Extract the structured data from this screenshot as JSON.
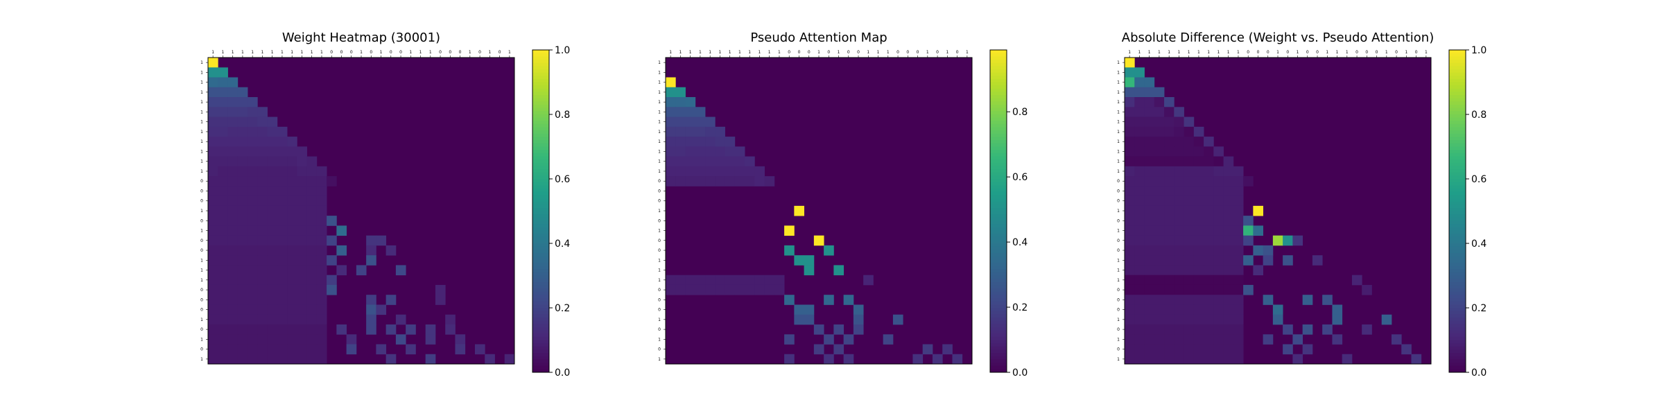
{
  "figure": {
    "colormap": "viridis"
  },
  "chart_data": [
    {
      "type": "heatmap",
      "title": "Weight Heatmap (30001)",
      "tick_labels": [
        "1",
        "1",
        "1",
        "1",
        "1",
        "1",
        "1",
        "1",
        "1",
        "1",
        "1",
        "1",
        "0",
        "0",
        "0",
        "1",
        "0",
        "1",
        "0",
        "0",
        "1",
        "1",
        "1",
        "0",
        "0",
        "0",
        "1",
        "0",
        "1",
        "0",
        "1"
      ],
      "value_range": [
        0,
        1
      ],
      "colorbar_ticks": [
        "0.0",
        "0.2",
        "0.4",
        "0.6",
        "0.8",
        "1.0"
      ],
      "colorbar_values": [
        0,
        0.2,
        0.4,
        0.6,
        0.8,
        1.0
      ],
      "row_prefix_values": [
        [
          1.0
        ],
        [
          0.5,
          0.5
        ],
        [
          0.34,
          0.33,
          0.33
        ],
        [
          0.25,
          0.25,
          0.25,
          0.25
        ],
        [
          0.2,
          0.2,
          0.2,
          0.2,
          0.2
        ],
        [
          0.17,
          0.17,
          0.17,
          0.17,
          0.16,
          0.16
        ],
        [
          0.14,
          0.14,
          0.14,
          0.14,
          0.14,
          0.15,
          0.15
        ],
        [
          0.13,
          0.13,
          0.12,
          0.12,
          0.12,
          0.12,
          0.13,
          0.13
        ],
        [
          0.11,
          0.11,
          0.11,
          0.11,
          0.11,
          0.11,
          0.11,
          0.11,
          0.12
        ],
        [
          0.1,
          0.1,
          0.1,
          0.1,
          0.1,
          0.1,
          0.1,
          0.1,
          0.1,
          0.1
        ],
        [
          0.09,
          0.09,
          0.09,
          0.09,
          0.09,
          0.09,
          0.09,
          0.09,
          0.09,
          0.1,
          0.09
        ],
        [
          0.09,
          0.08,
          0.08,
          0.08,
          0.08,
          0.08,
          0.08,
          0.08,
          0.08,
          0.09,
          0.09,
          0.09
        ],
        [
          0.08,
          0.08,
          0.08,
          0.08,
          0.08,
          0.08,
          0.08,
          0.08,
          0.08,
          0.08,
          0.08,
          0.08,
          0.04
        ]
      ],
      "row_band_values": [
        0.08,
        0.08,
        0.08,
        0.08,
        0.08,
        0.08,
        0.07,
        0.07,
        0.07,
        0.07,
        0.07,
        0.07,
        0.07,
        0.07,
        0.06,
        0.06,
        0.06,
        0.06
      ],
      "highlight_cells": [
        {
          "row": 16,
          "col": 12,
          "value": 0.25
        },
        {
          "row": 17,
          "col": 13,
          "value": 0.35
        },
        {
          "row": 18,
          "col": 12,
          "value": 0.2
        },
        {
          "row": 18,
          "col": 16,
          "value": 0.15
        },
        {
          "row": 18,
          "col": 17,
          "value": 0.15
        },
        {
          "row": 19,
          "col": 13,
          "value": 0.3
        },
        {
          "row": 19,
          "col": 16,
          "value": 0.12
        },
        {
          "row": 19,
          "col": 18,
          "value": 0.12
        },
        {
          "row": 20,
          "col": 16,
          "value": 0.25
        },
        {
          "row": 20,
          "col": 12,
          "value": 0.2
        },
        {
          "row": 21,
          "col": 13,
          "value": 0.12
        },
        {
          "row": 21,
          "col": 15,
          "value": 0.2
        },
        {
          "row": 21,
          "col": 19,
          "value": 0.22
        },
        {
          "row": 22,
          "col": 12,
          "value": 0.18
        },
        {
          "row": 23,
          "col": 12,
          "value": 0.25
        },
        {
          "row": 23,
          "col": 23,
          "value": 0.1
        },
        {
          "row": 24,
          "col": 16,
          "value": 0.18
        },
        {
          "row": 24,
          "col": 18,
          "value": 0.2
        },
        {
          "row": 24,
          "col": 23,
          "value": 0.1
        },
        {
          "row": 25,
          "col": 16,
          "value": 0.25
        },
        {
          "row": 25,
          "col": 17,
          "value": 0.15
        },
        {
          "row": 26,
          "col": 16,
          "value": 0.2
        },
        {
          "row": 26,
          "col": 19,
          "value": 0.12
        },
        {
          "row": 26,
          "col": 24,
          "value": 0.1
        },
        {
          "row": 27,
          "col": 13,
          "value": 0.15
        },
        {
          "row": 27,
          "col": 16,
          "value": 0.2
        },
        {
          "row": 27,
          "col": 18,
          "value": 0.18
        },
        {
          "row": 27,
          "col": 20,
          "value": 0.18
        },
        {
          "row": 27,
          "col": 22,
          "value": 0.15
        },
        {
          "row": 27,
          "col": 24,
          "value": 0.12
        },
        {
          "row": 28,
          "col": 14,
          "value": 0.12
        },
        {
          "row": 28,
          "col": 19,
          "value": 0.22
        },
        {
          "row": 28,
          "col": 22,
          "value": 0.15
        },
        {
          "row": 28,
          "col": 25,
          "value": 0.12
        },
        {
          "row": 29,
          "col": 14,
          "value": 0.2
        },
        {
          "row": 29,
          "col": 17,
          "value": 0.15
        },
        {
          "row": 29,
          "col": 20,
          "value": 0.15
        },
        {
          "row": 29,
          "col": 25,
          "value": 0.15
        },
        {
          "row": 29,
          "col": 27,
          "value": 0.12
        },
        {
          "row": 30,
          "col": 18,
          "value": 0.15
        },
        {
          "row": 30,
          "col": 22,
          "value": 0.18
        },
        {
          "row": 30,
          "col": 28,
          "value": 0.12
        },
        {
          "row": 30,
          "col": 30,
          "value": 0.1
        }
      ]
    },
    {
      "type": "heatmap",
      "title": "Pseudo Attention Map",
      "tick_labels": [
        "1",
        "1",
        "1",
        "1",
        "1",
        "1",
        "1",
        "1",
        "1",
        "1",
        "1",
        "1",
        "0",
        "0",
        "0",
        "1",
        "0",
        "1",
        "0",
        "0",
        "1",
        "1",
        "1",
        "0",
        "0",
        "0",
        "1",
        "0",
        "1",
        "0",
        "1"
      ],
      "value_range": [
        0,
        1
      ],
      "colorbar_ticks": [
        "0.0",
        "0.2",
        "0.4",
        "0.6",
        "0.8"
      ],
      "colorbar_values": [
        0,
        0.2,
        0.4,
        0.6,
        0.8
      ],
      "row_prefix_values": [
        [
          0
        ],
        [
          0
        ],
        [
          1.0
        ],
        [
          0.5,
          0.5
        ],
        [
          0.33,
          0.33,
          0.34
        ],
        [
          0.25,
          0.25,
          0.25,
          0.25
        ],
        [
          0.2,
          0.2,
          0.2,
          0.2,
          0.2
        ],
        [
          0.17,
          0.17,
          0.17,
          0.17,
          0.16,
          0.16
        ],
        [
          0.14,
          0.14,
          0.14,
          0.14,
          0.14,
          0.15,
          0.15
        ],
        [
          0.13,
          0.13,
          0.12,
          0.12,
          0.12,
          0.12,
          0.13,
          0.13
        ],
        [
          0.11,
          0.11,
          0.11,
          0.11,
          0.11,
          0.11,
          0.11,
          0.11,
          0.12
        ],
        [
          0.1,
          0.1,
          0.1,
          0.1,
          0.1,
          0.1,
          0.1,
          0.1,
          0.1,
          0.1
        ],
        [
          0.09,
          0.09,
          0.09,
          0.09,
          0.09,
          0.09,
          0.09,
          0.09,
          0.09,
          0.1,
          0.09
        ],
        [
          0
        ],
        [
          0
        ],
        [
          0
        ],
        [
          0
        ],
        [
          0
        ],
        [
          0
        ],
        [
          0
        ],
        [
          0
        ],
        [
          0
        ],
        [
          0.08,
          0.08,
          0.08,
          0.08,
          0.08,
          0.08,
          0.08,
          0.08,
          0.08,
          0.08,
          0.08,
          0.08
        ],
        [
          0.08,
          0.08,
          0.08,
          0.08,
          0.08,
          0.08,
          0.08,
          0.08,
          0.08,
          0.08,
          0.08,
          0.08
        ],
        [
          0
        ],
        [
          0
        ],
        [
          0
        ],
        [
          0
        ],
        [
          0
        ],
        [
          0
        ],
        [
          0
        ]
      ],
      "row_band_values": [],
      "highlight_cells": [
        {
          "row": 15,
          "col": 13,
          "value": 1.0
        },
        {
          "row": 17,
          "col": 12,
          "value": 1.0
        },
        {
          "row": 18,
          "col": 15,
          "value": 1.0
        },
        {
          "row": 19,
          "col": 12,
          "value": 0.5
        },
        {
          "row": 19,
          "col": 16,
          "value": 0.5
        },
        {
          "row": 20,
          "col": 13,
          "value": 0.5
        },
        {
          "row": 20,
          "col": 14,
          "value": 0.5
        },
        {
          "row": 21,
          "col": 14,
          "value": 0.5
        },
        {
          "row": 21,
          "col": 17,
          "value": 0.5
        },
        {
          "row": 22,
          "col": 20,
          "value": 0.1
        },
        {
          "row": 24,
          "col": 12,
          "value": 0.33
        },
        {
          "row": 24,
          "col": 16,
          "value": 0.33
        },
        {
          "row": 24,
          "col": 18,
          "value": 0.33
        },
        {
          "row": 25,
          "col": 13,
          "value": 0.3
        },
        {
          "row": 25,
          "col": 14,
          "value": 0.3
        },
        {
          "row": 25,
          "col": 19,
          "value": 0.3
        },
        {
          "row": 26,
          "col": 13,
          "value": 0.25
        },
        {
          "row": 26,
          "col": 14,
          "value": 0.25
        },
        {
          "row": 26,
          "col": 19,
          "value": 0.25
        },
        {
          "row": 26,
          "col": 23,
          "value": 0.25
        },
        {
          "row": 27,
          "col": 15,
          "value": 0.2
        },
        {
          "row": 27,
          "col": 17,
          "value": 0.2
        },
        {
          "row": 27,
          "col": 19,
          "value": 0.2
        },
        {
          "row": 28,
          "col": 12,
          "value": 0.2
        },
        {
          "row": 28,
          "col": 16,
          "value": 0.2
        },
        {
          "row": 28,
          "col": 18,
          "value": 0.2
        },
        {
          "row": 28,
          "col": 22,
          "value": 0.2
        },
        {
          "row": 29,
          "col": 15,
          "value": 0.17
        },
        {
          "row": 29,
          "col": 17,
          "value": 0.17
        },
        {
          "row": 29,
          "col": 26,
          "value": 0.17
        },
        {
          "row": 30,
          "col": 12,
          "value": 0.14
        },
        {
          "row": 30,
          "col": 16,
          "value": 0.14
        },
        {
          "row": 30,
          "col": 18,
          "value": 0.14
        },
        {
          "row": 30,
          "col": 25,
          "value": 0.14
        },
        {
          "row": 30,
          "col": 27,
          "value": 0.14
        },
        {
          "row": 30,
          "col": 29,
          "value": 0.14
        },
        {
          "row": 29,
          "col": 28,
          "value": 0.14
        }
      ]
    },
    {
      "type": "heatmap",
      "title": "Absolute Difference (Weight vs. Pseudo Attention)",
      "tick_labels": [
        "1",
        "1",
        "1",
        "1",
        "1",
        "1",
        "1",
        "1",
        "1",
        "1",
        "1",
        "1",
        "0",
        "0",
        "0",
        "1",
        "0",
        "1",
        "0",
        "0",
        "1",
        "1",
        "1",
        "0",
        "0",
        "0",
        "1",
        "0",
        "1",
        "0",
        "1"
      ],
      "value_range": [
        0,
        1
      ],
      "colorbar_ticks": [
        "0.0",
        "0.2",
        "0.4",
        "0.6",
        "0.8",
        "1.0"
      ],
      "colorbar_values": [
        0,
        0.2,
        0.4,
        0.6,
        0.8,
        1.0
      ],
      "row_prefix_values": [
        [
          1.0
        ],
        [
          0.5,
          0.5
        ],
        [
          0.66,
          0.33,
          0.33
        ],
        [
          0.25,
          0.25,
          0.25,
          0.25
        ],
        [
          0.13,
          0.08,
          0.08,
          0.05,
          0.2
        ],
        [
          0.08,
          0.08,
          0.08,
          0.08,
          0.04,
          0.16
        ],
        [
          0.06,
          0.06,
          0.06,
          0.06,
          0.06,
          0.05,
          0.15
        ],
        [
          0.05,
          0.05,
          0.05,
          0.05,
          0.05,
          0.04,
          0.02,
          0.13
        ],
        [
          0.03,
          0.03,
          0.03,
          0.03,
          0.03,
          0.03,
          0.03,
          0.02,
          0.12
        ],
        [
          0.03,
          0.03,
          0.03,
          0.03,
          0.03,
          0.03,
          0.03,
          0.03,
          0.02,
          0.1
        ],
        [
          0.02,
          0.02,
          0.02,
          0.02,
          0.02,
          0.02,
          0.02,
          0.02,
          0.02,
          0.01,
          0.09
        ],
        [
          0.09,
          0.08,
          0.08,
          0.08,
          0.08,
          0.08,
          0.08,
          0.08,
          0.08,
          0.09,
          0.09,
          0.09
        ],
        [
          0.08,
          0.08,
          0.08,
          0.08,
          0.08,
          0.08,
          0.08,
          0.08,
          0.08,
          0.08,
          0.08,
          0.08,
          0.04
        ]
      ],
      "row_band_values": [
        0.08,
        0.08,
        0.08,
        0.08,
        0.08,
        0.08,
        0.07,
        0.07,
        0.07,
        0.01,
        0.01,
        0.07,
        0.07,
        0.07,
        0.06,
        0.06,
        0.06,
        0.06
      ],
      "highlight_cells": [
        {
          "row": 15,
          "col": 13,
          "value": 1.0
        },
        {
          "row": 16,
          "col": 12,
          "value": 0.25
        },
        {
          "row": 17,
          "col": 12,
          "value": 0.65
        },
        {
          "row": 17,
          "col": 13,
          "value": 0.35
        },
        {
          "row": 18,
          "col": 15,
          "value": 0.85
        },
        {
          "row": 18,
          "col": 16,
          "value": 0.5
        },
        {
          "row": 18,
          "col": 17,
          "value": 0.15
        },
        {
          "row": 18,
          "col": 12,
          "value": 0.2
        },
        {
          "row": 19,
          "col": 13,
          "value": 0.3
        },
        {
          "row": 19,
          "col": 14,
          "value": 0.25
        },
        {
          "row": 20,
          "col": 12,
          "value": 0.3
        },
        {
          "row": 20,
          "col": 16,
          "value": 0.25
        },
        {
          "row": 20,
          "col": 14,
          "value": 0.2
        },
        {
          "row": 20,
          "col": 19,
          "value": 0.12
        },
        {
          "row": 21,
          "col": 13,
          "value": 0.12
        },
        {
          "row": 22,
          "col": 23,
          "value": 0.1
        },
        {
          "row": 23,
          "col": 12,
          "value": 0.25
        },
        {
          "row": 23,
          "col": 24,
          "value": 0.08
        },
        {
          "row": 24,
          "col": 14,
          "value": 0.3
        },
        {
          "row": 24,
          "col": 18,
          "value": 0.3
        },
        {
          "row": 24,
          "col": 20,
          "value": 0.25
        },
        {
          "row": 25,
          "col": 15,
          "value": 0.35
        },
        {
          "row": 25,
          "col": 21,
          "value": 0.3
        },
        {
          "row": 26,
          "col": 15,
          "value": 0.3
        },
        {
          "row": 26,
          "col": 21,
          "value": 0.3
        },
        {
          "row": 26,
          "col": 26,
          "value": 0.3
        },
        {
          "row": 27,
          "col": 16,
          "value": 0.2
        },
        {
          "row": 27,
          "col": 18,
          "value": 0.25
        },
        {
          "row": 27,
          "col": 20,
          "value": 0.2
        },
        {
          "row": 27,
          "col": 24,
          "value": 0.12
        },
        {
          "row": 28,
          "col": 14,
          "value": 0.18
        },
        {
          "row": 28,
          "col": 17,
          "value": 0.22
        },
        {
          "row": 28,
          "col": 21,
          "value": 0.15
        },
        {
          "row": 28,
          "col": 27,
          "value": 0.15
        },
        {
          "row": 29,
          "col": 16,
          "value": 0.2
        },
        {
          "row": 29,
          "col": 18,
          "value": 0.15
        },
        {
          "row": 29,
          "col": 28,
          "value": 0.15
        },
        {
          "row": 30,
          "col": 17,
          "value": 0.12
        },
        {
          "row": 30,
          "col": 22,
          "value": 0.12
        },
        {
          "row": 30,
          "col": 29,
          "value": 0.15
        }
      ]
    }
  ]
}
